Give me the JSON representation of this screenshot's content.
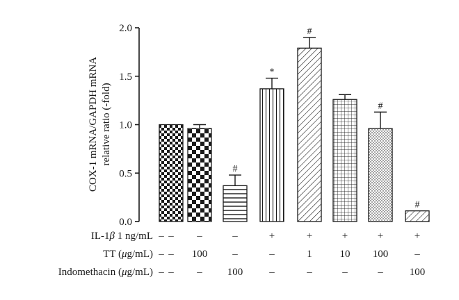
{
  "chart_data": {
    "type": "bar",
    "ylabel_line1": "COX-1 mRNA/GAPDH mRNA",
    "ylabel_line2": "relative ratio (-fold)",
    "ylim": [
      0,
      2.0
    ],
    "yticks": [
      "0.0",
      "0.5",
      "1.0",
      "1.5",
      "2.0"
    ],
    "grid": false,
    "legend": "none",
    "bars": [
      {
        "value": 1.0,
        "error": 0.0,
        "pattern": "checker-small",
        "sig": ""
      },
      {
        "value": 0.96,
        "error": 0.04,
        "pattern": "checker-large",
        "sig": ""
      },
      {
        "value": 0.37,
        "error": 0.11,
        "pattern": "horizontal-lines",
        "sig": "#"
      },
      {
        "value": 1.37,
        "error": 0.11,
        "pattern": "vertical-lines",
        "sig": "*"
      },
      {
        "value": 1.79,
        "error": 0.11,
        "pattern": "diagonal-lines",
        "sig": "#"
      },
      {
        "value": 1.26,
        "error": 0.05,
        "pattern": "grid",
        "sig": ""
      },
      {
        "value": 0.96,
        "error": 0.17,
        "pattern": "dots",
        "sig": "#"
      },
      {
        "value": 0.11,
        "error": 0.0,
        "pattern": "diagonal-lines",
        "sig": "#"
      }
    ],
    "conditions": [
      {
        "label": "IL-1β 1 ng/mL",
        "label_prefix": "IL-1",
        "label_italic": "β",
        "label_suffix": " 1 ng/mL",
        "values": [
          "–",
          "–",
          "–",
          "+",
          "+",
          "+",
          "+",
          "+"
        ]
      },
      {
        "label": "TT (μg/mL)",
        "label_prefix": "TT (",
        "label_italic": "μ",
        "label_suffix": "g/mL)",
        "values": [
          "–",
          "100",
          "–",
          "–",
          "1",
          "10",
          "100",
          "–"
        ]
      },
      {
        "label": "Indomethacin (μg/mL)",
        "label_prefix": "Indomethacin (",
        "label_italic": "μ",
        "label_suffix": "g/mL)",
        "values": [
          "–",
          "–",
          "100",
          "–",
          "–",
          "–",
          "–",
          "100"
        ]
      }
    ],
    "colors": {
      "ink": "#1a1a1a",
      "fill": "#ffffff"
    }
  }
}
